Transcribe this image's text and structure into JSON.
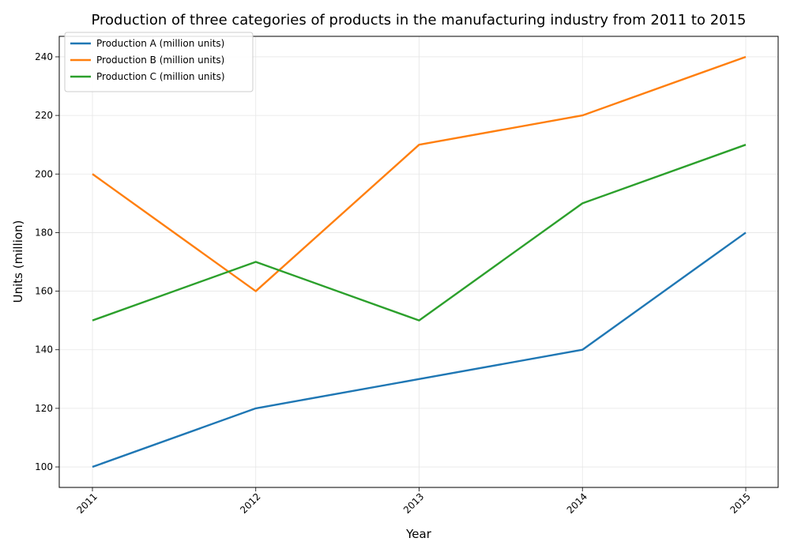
{
  "chart_data": {
    "type": "line",
    "title": "Production of three categories of products in the manufacturing industry from 2011 to 2015",
    "xlabel": "Year",
    "ylabel": "Units (million)",
    "x": [
      "2011",
      "2012",
      "2013",
      "2014",
      "2015"
    ],
    "ylim": [
      93,
      247
    ],
    "yticks": [
      100,
      120,
      140,
      160,
      180,
      200,
      220,
      240
    ],
    "grid": true,
    "legend_position": "top-left",
    "series": [
      {
        "name": "Production A (million units)",
        "color": "#1f77b4",
        "values": [
          100,
          120,
          130,
          140,
          180
        ]
      },
      {
        "name": "Production B (million units)",
        "color": "#ff7f0e",
        "values": [
          200,
          160,
          210,
          220,
          240
        ]
      },
      {
        "name": "Production C (million units)",
        "color": "#2ca02c",
        "values": [
          150,
          170,
          150,
          190,
          210
        ]
      }
    ]
  }
}
